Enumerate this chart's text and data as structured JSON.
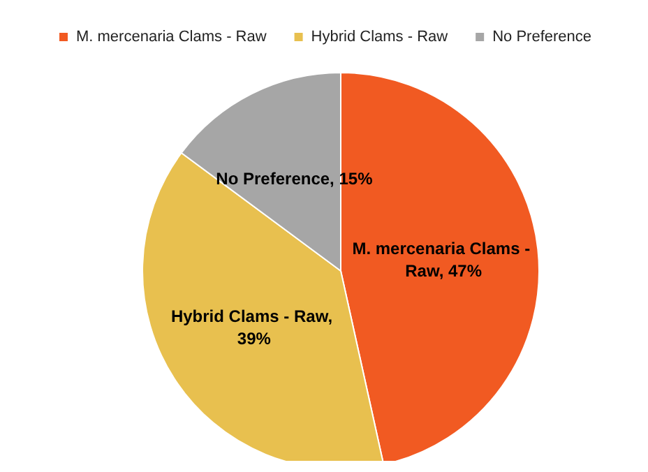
{
  "chart_data": {
    "type": "pie",
    "categories": [
      "M. mercenaria Clams - Raw",
      "Hybrid Clams - Raw",
      "No Preference"
    ],
    "values": [
      47,
      39,
      15
    ],
    "value_labels": [
      "M. mercenaria Clams - Raw, 47%",
      "Hybrid Clams - Raw, 39%",
      "No Preference, 15%"
    ],
    "colors": [
      "#f15a22",
      "#e8c04f",
      "#a6a6a6"
    ],
    "legend": "top"
  }
}
